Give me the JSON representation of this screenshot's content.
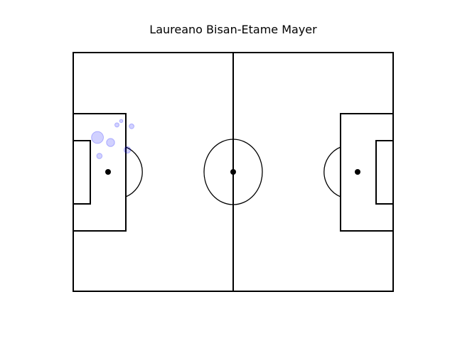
{
  "chart_data": {
    "type": "scatter",
    "title": "Laureano Bisan-Etame Mayer",
    "xlabel": "",
    "ylabel": "",
    "xlim": [
      0,
      120
    ],
    "ylim": [
      0,
      90
    ],
    "grid": false,
    "legend": "none",
    "marker_color": "#0000ff",
    "marker_alpha": 0.18,
    "series": [
      {
        "points": [
          {
            "x": 9.1,
            "y": 58.0,
            "size": 2.2
          },
          {
            "x": 14.0,
            "y": 56.1,
            "size": 1.5
          },
          {
            "x": 16.4,
            "y": 62.7,
            "size": 0.8
          },
          {
            "x": 18.0,
            "y": 64.2,
            "size": 0.6
          },
          {
            "x": 21.9,
            "y": 62.2,
            "size": 0.9
          },
          {
            "x": 20.3,
            "y": 53.3,
            "size": 1.2
          },
          {
            "x": 9.8,
            "y": 51.0,
            "size": 1.0
          }
        ]
      }
    ]
  }
}
